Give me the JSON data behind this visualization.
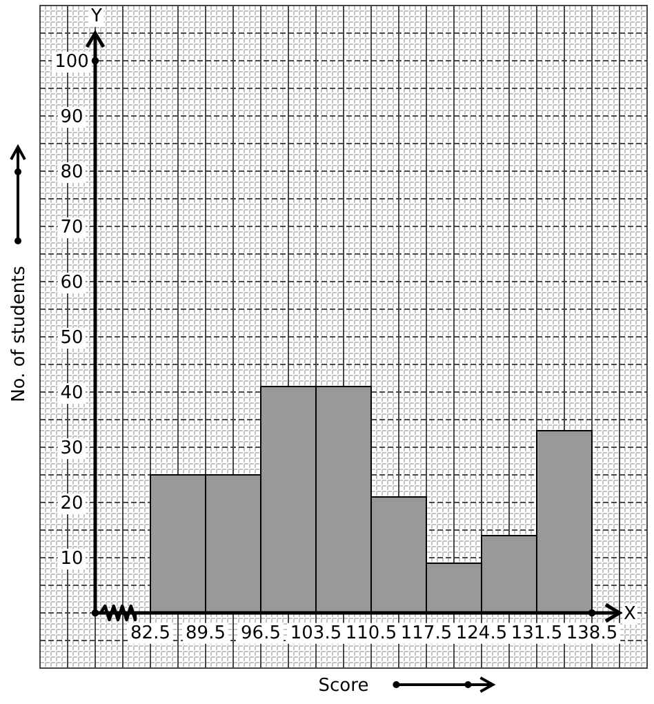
{
  "chart_data": {
    "type": "histogram",
    "xlabel": "Score",
    "ylabel": "No. of students",
    "annotations": [
      "X",
      "Y"
    ],
    "bins": [
      82.5,
      89.5,
      96.5,
      103.5,
      110.5,
      117.5,
      124.5,
      131.5,
      138.5
    ],
    "values": [
      25,
      25,
      41,
      41,
      21,
      9,
      14,
      33
    ],
    "color": "#999999",
    "xlim": [
      68.5,
      145.5
    ],
    "ylim": [
      -10,
      110
    ],
    "xticks": [
      82.5,
      89.5,
      96.5,
      103.5,
      110.5,
      117.5,
      124.5,
      131.5,
      138.5
    ],
    "yticks": [
      10,
      20,
      30,
      40,
      50,
      60,
      70,
      80,
      90,
      100
    ],
    "grid": true
  }
}
